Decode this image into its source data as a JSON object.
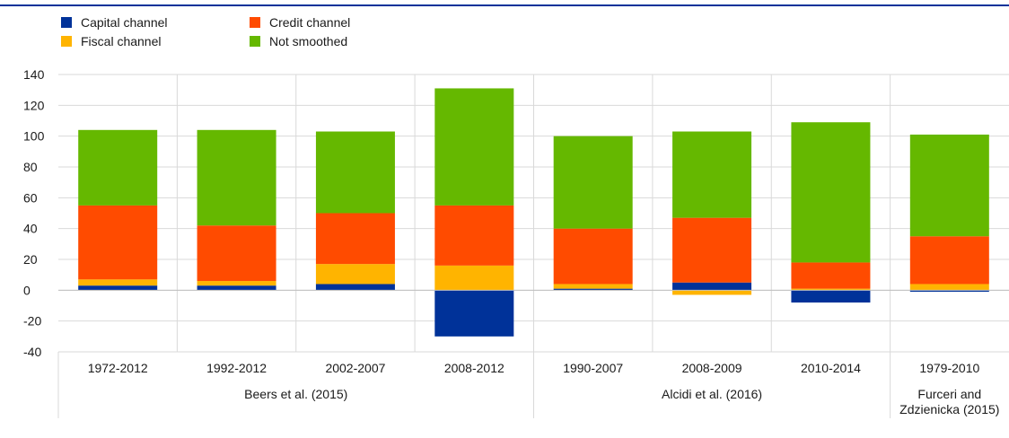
{
  "chart_data": {
    "type": "bar",
    "stacked": true,
    "title": "",
    "xlabel": "",
    "ylabel": "",
    "ylim": [
      -40,
      140
    ],
    "yticks": [
      -40,
      -20,
      0,
      20,
      40,
      60,
      80,
      100,
      120,
      140
    ],
    "grid": true,
    "legend_position": "top-left",
    "categories": [
      "1972-2012",
      "1992-2012",
      "2002-2007",
      "2008-2012",
      "1990-2007",
      "2008-2009",
      "2010-2014",
      "1979-2010"
    ],
    "groups": [
      {
        "label": "Beers et al. (2015)",
        "span": 4
      },
      {
        "label": "Alcidi et al. (2016)",
        "span": 3
      },
      {
        "label_lines": [
          "Furceri and",
          "Zdzienicka (2015)"
        ],
        "span": 1
      }
    ],
    "series": [
      {
        "name": "Capital channel",
        "color": "#003299",
        "values": [
          3,
          3,
          4,
          -30,
          1,
          5,
          -8,
          -1
        ]
      },
      {
        "name": "Fiscal channel",
        "color": "#FFB400",
        "values": [
          4,
          3,
          13,
          16,
          3,
          -3,
          1,
          4
        ]
      },
      {
        "name": "Credit channel",
        "color": "#FF4B00",
        "values": [
          48,
          36,
          33,
          39,
          36,
          42,
          17,
          31
        ]
      },
      {
        "name": "Not smoothed",
        "color": "#65B800",
        "values": [
          49,
          62,
          53,
          76,
          60,
          56,
          91,
          66
        ]
      }
    ]
  }
}
